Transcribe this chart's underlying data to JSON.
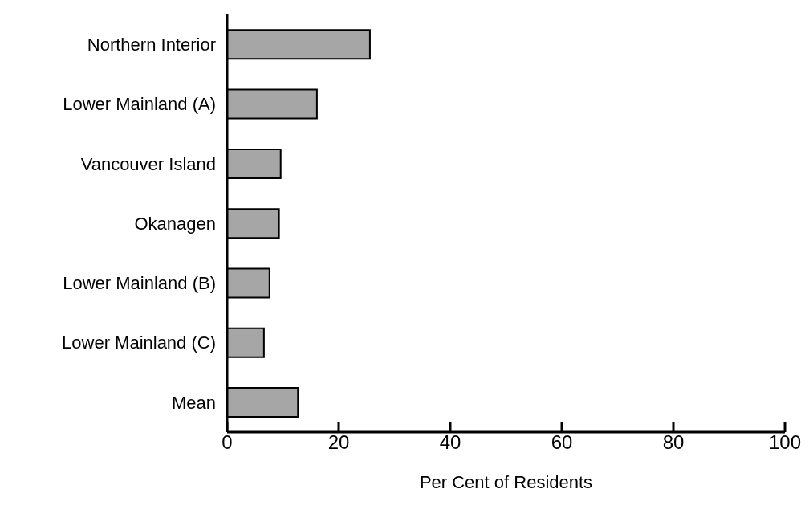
{
  "chart_data": {
    "type": "bar",
    "orientation": "horizontal",
    "xlabel": "Per Cent of Residents",
    "categories": [
      "Northern Interior",
      "Lower Mainland (A)",
      "Vancouver Island",
      "Okanagen",
      "Lower Mainland (B)",
      "Lower Mainland (C)",
      "Mean"
    ],
    "values": [
      25.6,
      16.1,
      9.6,
      9.3,
      7.6,
      6.6,
      12.7
    ],
    "color": "#a6a6a6",
    "xlim": [
      0,
      100
    ],
    "xticks": [
      0,
      20,
      40,
      60,
      80,
      100
    ],
    "grid": false
  }
}
